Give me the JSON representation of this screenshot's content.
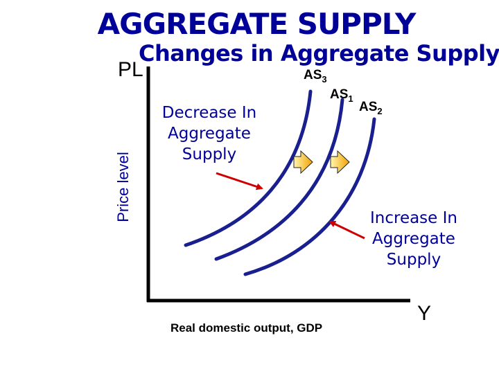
{
  "title": "AGGREGATE SUPPLY",
  "subtitle": "Changes in Aggregate Supply",
  "axes": {
    "y_short": "PL",
    "y_label": "Price level",
    "x_label": "Real domestic output, GDP",
    "x_short": "Y"
  },
  "curves": [
    {
      "sub": "AS",
      "index": "3"
    },
    {
      "sub": "AS",
      "index": "1"
    },
    {
      "sub": "AS",
      "index": "2"
    }
  ],
  "annotations": {
    "decrease": "Decrease In\nAggregate\nSupply",
    "increase": "Increase In\nAggregate\nSupply"
  },
  "colors": {
    "heading": "#000099",
    "curve": "#1a1f8f",
    "arrow": "#cc0000",
    "shift_arrow_light": "#fff6b0",
    "shift_arrow_dark": "#f2a100"
  }
}
